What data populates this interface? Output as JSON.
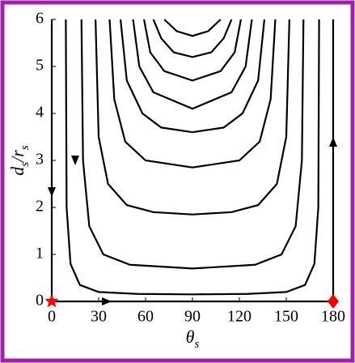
{
  "chart_data": {
    "type": "line",
    "xlabel": [
      {
        "text": "θ"
      },
      {
        "text": "s",
        "sub": true
      }
    ],
    "ylabel": [
      {
        "text": "d"
      },
      {
        "text": "s",
        "sub": true
      },
      {
        "text": "/r"
      },
      {
        "text": "s",
        "sub": true
      }
    ],
    "xlim": [
      0,
      180
    ],
    "xticks": [
      0,
      30,
      60,
      90,
      120,
      150,
      180
    ],
    "ylim": [
      0,
      6
    ],
    "yticks": [
      0,
      1,
      2,
      3,
      4,
      5,
      6
    ],
    "color": "#000000",
    "series": [
      {
        "x": [
          9,
          9.5,
          12,
          18,
          30,
          55,
          90,
          125,
          150,
          162,
          168,
          170.5,
          171
        ],
        "values": [
          6,
          2,
          0.8,
          0.35,
          0.2,
          0.16,
          0.15,
          0.16,
          0.2,
          0.35,
          0.8,
          2,
          6
        ]
      },
      {
        "x": [
          19,
          20,
          24,
          33,
          50,
          90,
          130,
          147,
          156,
          160,
          161
        ],
        "values": [
          6,
          3,
          1.6,
          1.0,
          0.78,
          0.7,
          0.78,
          1.0,
          1.6,
          3,
          6
        ]
      },
      {
        "x": [
          28,
          30,
          36,
          48,
          65,
          90,
          115,
          132,
          144,
          150,
          152
        ],
        "values": [
          6,
          3.5,
          2.5,
          2.05,
          1.9,
          1.85,
          1.9,
          2.05,
          2.5,
          3.5,
          6
        ]
      },
      {
        "x": [
          37,
          40,
          47,
          60,
          90,
          120,
          133,
          140,
          143
        ],
        "values": [
          6,
          4.3,
          3.4,
          3.0,
          2.85,
          3.0,
          3.4,
          4.3,
          6
        ]
      },
      {
        "x": [
          44,
          48,
          58,
          70,
          90,
          110,
          122,
          132,
          136
        ],
        "values": [
          6,
          4.7,
          4.0,
          3.7,
          3.6,
          3.7,
          4.0,
          4.7,
          6
        ]
      },
      {
        "x": [
          52,
          56,
          65,
          90,
          115,
          124,
          128
        ],
        "values": [
          6,
          5,
          4.45,
          4.1,
          4.45,
          5,
          6
        ]
      },
      {
        "x": [
          59,
          63,
          72,
          90,
          108,
          117,
          121
        ],
        "values": [
          6,
          5.3,
          4.9,
          4.7,
          4.9,
          5.3,
          6
        ]
      },
      {
        "x": [
          65,
          70,
          78,
          90,
          102,
          110,
          115
        ],
        "values": [
          6,
          5.6,
          5.3,
          5.2,
          5.3,
          5.6,
          6
        ]
      },
      {
        "x": [
          72,
          80,
          90,
          100,
          108
        ],
        "values": [
          6,
          5.75,
          5.65,
          5.75,
          6
        ]
      },
      {
        "x": [
          0,
          0
        ],
        "values": [
          0,
          6
        ]
      },
      {
        "x": [
          180,
          180
        ],
        "values": [
          0,
          6
        ]
      },
      {
        "x": [
          0,
          180
        ],
        "values": [
          0,
          0
        ]
      }
    ],
    "points": [
      {
        "x": 0,
        "y": 0,
        "marker": "star",
        "color": "#ff0000"
      },
      {
        "x": 180,
        "y": 0,
        "marker": "diamond",
        "color": "#ff0000"
      }
    ]
  }
}
